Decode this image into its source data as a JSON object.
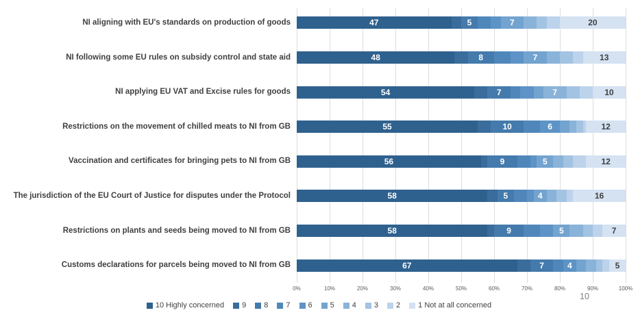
{
  "page_number": "10",
  "chart_data": {
    "type": "bar",
    "variant": "horizontal-stacked-100",
    "title": "",
    "xlabel": "",
    "ylabel": "",
    "xlim": [
      0,
      100
    ],
    "grid": true,
    "legend_position": "bottom",
    "axis_ticks": [
      "0%",
      "10%",
      "20%",
      "30%",
      "40%",
      "50%",
      "60%",
      "70%",
      "80%",
      "90%",
      "100%"
    ],
    "categories": [
      "10 Highly concerned",
      "9",
      "8",
      "7",
      "6",
      "5",
      "4",
      "3",
      "2",
      "1 Not at all concerned"
    ],
    "colors": [
      "#2f618e",
      "#3a6c9c",
      "#447aac",
      "#4f87bb",
      "#5d93c6",
      "#73a3cf",
      "#8ab3d9",
      "#a3c3e2",
      "#bcd3eb",
      "#d4e2f2"
    ],
    "label_color_on_dark": "#ffffff",
    "label_color_on_light": "#3f3f3f",
    "rows": [
      {
        "label": "NI aligning with EU's standards on production of goods",
        "segments": [
          {
            "v": 47,
            "t": "47"
          },
          {
            "v": 3,
            "t": ""
          },
          {
            "v": 5,
            "t": "5"
          },
          {
            "v": 4,
            "t": ""
          },
          {
            "v": 3,
            "t": ""
          },
          {
            "v": 7,
            "t": "7"
          },
          {
            "v": 4,
            "t": ""
          },
          {
            "v": 3,
            "t": ""
          },
          {
            "v": 4,
            "t": ""
          },
          {
            "v": 20,
            "t": "20"
          }
        ]
      },
      {
        "label": "NI following some EU rules on subsidy control and state aid",
        "segments": [
          {
            "v": 48,
            "t": "48"
          },
          {
            "v": 4,
            "t": ""
          },
          {
            "v": 8,
            "t": "8"
          },
          {
            "v": 5,
            "t": ""
          },
          {
            "v": 4,
            "t": ""
          },
          {
            "v": 7,
            "t": "7"
          },
          {
            "v": 4,
            "t": ""
          },
          {
            "v": 4,
            "t": ""
          },
          {
            "v": 3,
            "t": ""
          },
          {
            "v": 13,
            "t": "13"
          }
        ]
      },
      {
        "label": "NI applying EU VAT and Excise rules for goods",
        "segments": [
          {
            "v": 54,
            "t": "54"
          },
          {
            "v": 4,
            "t": ""
          },
          {
            "v": 7,
            "t": "7"
          },
          {
            "v": 3,
            "t": ""
          },
          {
            "v": 4,
            "t": ""
          },
          {
            "v": 3,
            "t": ""
          },
          {
            "v": 7,
            "t": "7"
          },
          {
            "v": 4,
            "t": ""
          },
          {
            "v": 4,
            "t": ""
          },
          {
            "v": 10,
            "t": "10"
          }
        ]
      },
      {
        "label": "Restrictions on the movement of chilled meats to NI from GB",
        "segments": [
          {
            "v": 55,
            "t": "55"
          },
          {
            "v": 4,
            "t": ""
          },
          {
            "v": 10,
            "t": "10"
          },
          {
            "v": 5,
            "t": ""
          },
          {
            "v": 6,
            "t": "6"
          },
          {
            "v": 3,
            "t": ""
          },
          {
            "v": 2,
            "t": ""
          },
          {
            "v": 2,
            "t": ""
          },
          {
            "v": 1,
            "t": ""
          },
          {
            "v": 12,
            "t": "12"
          }
        ]
      },
      {
        "label": "Vaccination and certificates for bringing pets to NI from GB",
        "segments": [
          {
            "v": 56,
            "t": "56"
          },
          {
            "v": 2,
            "t": ""
          },
          {
            "v": 9,
            "t": "9"
          },
          {
            "v": 4,
            "t": ""
          },
          {
            "v": 2,
            "t": ""
          },
          {
            "v": 5,
            "t": "5"
          },
          {
            "v": 3,
            "t": ""
          },
          {
            "v": 3,
            "t": ""
          },
          {
            "v": 4,
            "t": ""
          },
          {
            "v": 12,
            "t": "12"
          }
        ]
      },
      {
        "label": "The jurisdiction of the EU Court of Justice for disputes under  the Protocol",
        "segments": [
          {
            "v": 58,
            "t": "58"
          },
          {
            "v": 3,
            "t": ""
          },
          {
            "v": 5,
            "t": "5"
          },
          {
            "v": 4,
            "t": ""
          },
          {
            "v": 2,
            "t": ""
          },
          {
            "v": 4,
            "t": "4"
          },
          {
            "v": 3,
            "t": ""
          },
          {
            "v": 3,
            "t": ""
          },
          {
            "v": 2,
            "t": ""
          },
          {
            "v": 16,
            "t": "16"
          }
        ]
      },
      {
        "label": "Restrictions on plants and seeds being moved to NI from GB",
        "segments": [
          {
            "v": 58,
            "t": "58"
          },
          {
            "v": 2,
            "t": ""
          },
          {
            "v": 9,
            "t": "9"
          },
          {
            "v": 5,
            "t": ""
          },
          {
            "v": 4,
            "t": ""
          },
          {
            "v": 5,
            "t": "5"
          },
          {
            "v": 4,
            "t": ""
          },
          {
            "v": 3,
            "t": ""
          },
          {
            "v": 3,
            "t": ""
          },
          {
            "v": 7,
            "t": "7"
          }
        ]
      },
      {
        "label": "Customs declarations for parcels being moved to NI from GB",
        "segments": [
          {
            "v": 67,
            "t": "67"
          },
          {
            "v": 4,
            "t": ""
          },
          {
            "v": 7,
            "t": "7"
          },
          {
            "v": 3,
            "t": ""
          },
          {
            "v": 4,
            "t": "4"
          },
          {
            "v": 3,
            "t": ""
          },
          {
            "v": 3,
            "t": ""
          },
          {
            "v": 2,
            "t": ""
          },
          {
            "v": 2,
            "t": ""
          },
          {
            "v": 5,
            "t": "5"
          }
        ]
      }
    ]
  }
}
